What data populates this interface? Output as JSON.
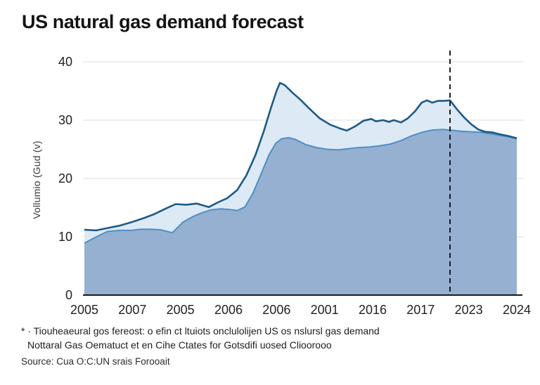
{
  "title": "US natural gas demand forecast",
  "footnote": {
    "line1": "* · Tiouheaeural gos fereost: o efin ct ltuiots onclulolijen US os nslursl gas demand",
    "line2": "Nottaral Gas Oematuct et en Cihe Ctates for Gotsdifi uosed Clioorooo"
  },
  "source": "Source: Cua O:C:UN srais Forooait",
  "chart_data": {
    "type": "area",
    "title": "US natural gas demand forecast",
    "xlabel": "",
    "ylabel": "Vollumio (Gud (v)",
    "ylim": [
      0,
      40
    ],
    "y_ticks": [
      0,
      10,
      20,
      30,
      40
    ],
    "x_tick_labels": [
      "2005",
      "2007",
      "2005",
      "2006",
      "2006",
      "2001",
      "2016",
      "2017",
      "2023",
      "2024"
    ],
    "grid": "horizontal",
    "legend_position": "none",
    "forecast_divider_t": 7.61,
    "colors": {
      "dark_line": "#1e5a88",
      "light_fill": "#dbe9f6",
      "mid_line": "#4f8ec6",
      "steel_fill": "#8fabce",
      "grid": "#e3e3e3",
      "axis": "#1a1a1a",
      "divider": "#1c1c1c"
    },
    "series": [
      {
        "name": "total-demand-forecast",
        "points": [
          [
            0,
            11.2
          ],
          [
            0.25,
            11.1
          ],
          [
            0.48,
            11.5
          ],
          [
            0.73,
            11.9
          ],
          [
            0.98,
            12.5
          ],
          [
            1.24,
            13.2
          ],
          [
            1.46,
            13.9
          ],
          [
            1.71,
            14.9
          ],
          [
            1.9,
            15.6
          ],
          [
            2.12,
            15.5
          ],
          [
            2.34,
            15.7
          ],
          [
            2.59,
            15.1
          ],
          [
            2.78,
            15.9
          ],
          [
            2.97,
            16.6
          ],
          [
            3.18,
            18
          ],
          [
            3.37,
            20.5
          ],
          [
            3.56,
            24
          ],
          [
            3.73,
            28
          ],
          [
            3.88,
            32
          ],
          [
            4.0,
            35
          ],
          [
            4.07,
            36.4
          ],
          [
            4.17,
            36
          ],
          [
            4.32,
            34.8
          ],
          [
            4.51,
            33.4
          ],
          [
            4.68,
            32
          ],
          [
            4.9,
            30.3
          ],
          [
            5.12,
            29.2
          ],
          [
            5.31,
            28.6
          ],
          [
            5.46,
            28.2
          ],
          [
            5.63,
            28.9
          ],
          [
            5.81,
            29.9
          ],
          [
            5.97,
            30.2
          ],
          [
            6.07,
            29.8
          ],
          [
            6.22,
            30
          ],
          [
            6.34,
            29.7
          ],
          [
            6.44,
            30
          ],
          [
            6.59,
            29.6
          ],
          [
            6.73,
            30.3
          ],
          [
            6.88,
            31.5
          ],
          [
            7.02,
            33
          ],
          [
            7.13,
            33.4
          ],
          [
            7.24,
            33
          ],
          [
            7.36,
            33.3
          ],
          [
            7.49,
            33.3
          ],
          [
            7.61,
            33.4
          ],
          [
            7.76,
            31.8
          ],
          [
            7.9,
            30.5
          ],
          [
            8.05,
            29.3
          ],
          [
            8.2,
            28.4
          ],
          [
            8.34,
            28
          ],
          [
            8.49,
            27.9
          ],
          [
            8.63,
            27.6
          ],
          [
            8.81,
            27.3
          ],
          [
            9,
            26.9
          ]
        ]
      },
      {
        "name": "base-demand",
        "points": [
          [
            0,
            8.9
          ],
          [
            0.25,
            10
          ],
          [
            0.48,
            10.9
          ],
          [
            0.73,
            11.1
          ],
          [
            0.98,
            11.1
          ],
          [
            1.17,
            11.3
          ],
          [
            1.36,
            11.3
          ],
          [
            1.58,
            11.2
          ],
          [
            1.83,
            10.7
          ],
          [
            2.05,
            12.5
          ],
          [
            2.27,
            13.5
          ],
          [
            2.44,
            14.1
          ],
          [
            2.63,
            14.6
          ],
          [
            2.83,
            14.8
          ],
          [
            3.0,
            14.7
          ],
          [
            3.18,
            14.5
          ],
          [
            3.34,
            15.1
          ],
          [
            3.51,
            17.5
          ],
          [
            3.69,
            21
          ],
          [
            3.84,
            24
          ],
          [
            3.98,
            26
          ],
          [
            4.1,
            26.8
          ],
          [
            4.25,
            27
          ],
          [
            4.39,
            26.7
          ],
          [
            4.61,
            25.8
          ],
          [
            4.83,
            25.3
          ],
          [
            5.05,
            25
          ],
          [
            5.27,
            24.9
          ],
          [
            5.49,
            25.1
          ],
          [
            5.71,
            25.3
          ],
          [
            5.93,
            25.4
          ],
          [
            6.15,
            25.6
          ],
          [
            6.37,
            25.9
          ],
          [
            6.59,
            26.5
          ],
          [
            6.81,
            27.3
          ],
          [
            7.02,
            27.9
          ],
          [
            7.24,
            28.3
          ],
          [
            7.46,
            28.4
          ],
          [
            7.61,
            28.3
          ],
          [
            7.83,
            28.1
          ],
          [
            8.05,
            28
          ],
          [
            8.27,
            27.9
          ],
          [
            8.49,
            27.6
          ],
          [
            8.71,
            27.3
          ],
          [
            8.86,
            27.1
          ],
          [
            9,
            26.8
          ]
        ]
      }
    ]
  }
}
